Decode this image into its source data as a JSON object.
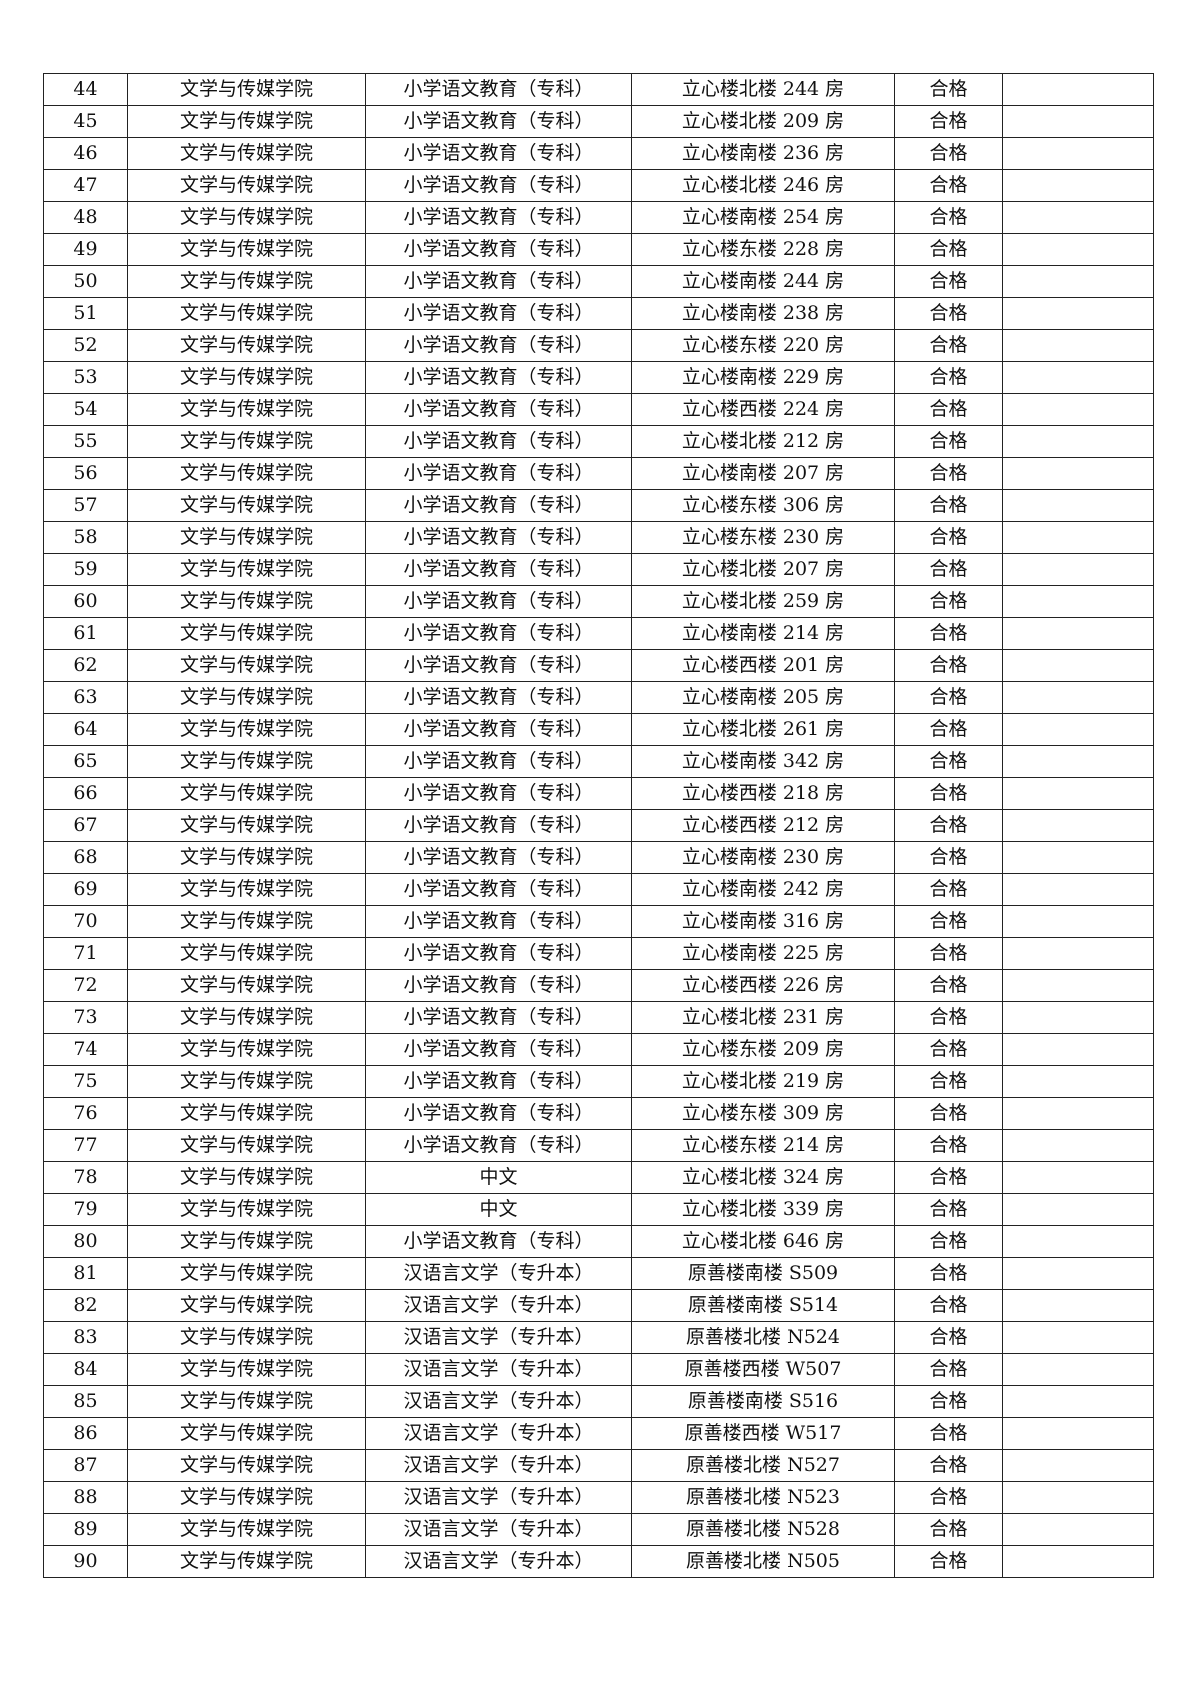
{
  "table": {
    "rows": [
      [
        "44",
        "文学与传媒学院",
        "小学语文教育（专科）",
        "立心楼北楼 244 房",
        "合格",
        ""
      ],
      [
        "45",
        "文学与传媒学院",
        "小学语文教育（专科）",
        "立心楼北楼 209 房",
        "合格",
        ""
      ],
      [
        "46",
        "文学与传媒学院",
        "小学语文教育（专科）",
        "立心楼南楼 236 房",
        "合格",
        ""
      ],
      [
        "47",
        "文学与传媒学院",
        "小学语文教育（专科）",
        "立心楼北楼 246 房",
        "合格",
        ""
      ],
      [
        "48",
        "文学与传媒学院",
        "小学语文教育（专科）",
        "立心楼南楼 254 房",
        "合格",
        ""
      ],
      [
        "49",
        "文学与传媒学院",
        "小学语文教育（专科）",
        "立心楼东楼 228 房",
        "合格",
        ""
      ],
      [
        "50",
        "文学与传媒学院",
        "小学语文教育（专科）",
        "立心楼南楼 244 房",
        "合格",
        ""
      ],
      [
        "51",
        "文学与传媒学院",
        "小学语文教育（专科）",
        "立心楼南楼 238 房",
        "合格",
        ""
      ],
      [
        "52",
        "文学与传媒学院",
        "小学语文教育（专科）",
        "立心楼东楼 220 房",
        "合格",
        ""
      ],
      [
        "53",
        "文学与传媒学院",
        "小学语文教育（专科）",
        "立心楼南楼 229 房",
        "合格",
        ""
      ],
      [
        "54",
        "文学与传媒学院",
        "小学语文教育（专科）",
        "立心楼西楼 224 房",
        "合格",
        ""
      ],
      [
        "55",
        "文学与传媒学院",
        "小学语文教育（专科）",
        "立心楼北楼 212 房",
        "合格",
        ""
      ],
      [
        "56",
        "文学与传媒学院",
        "小学语文教育（专科）",
        "立心楼南楼 207 房",
        "合格",
        ""
      ],
      [
        "57",
        "文学与传媒学院",
        "小学语文教育（专科）",
        "立心楼东楼 306 房",
        "合格",
        ""
      ],
      [
        "58",
        "文学与传媒学院",
        "小学语文教育（专科）",
        "立心楼东楼 230 房",
        "合格",
        ""
      ],
      [
        "59",
        "文学与传媒学院",
        "小学语文教育（专科）",
        "立心楼北楼 207 房",
        "合格",
        ""
      ],
      [
        "60",
        "文学与传媒学院",
        "小学语文教育（专科）",
        "立心楼北楼 259 房",
        "合格",
        ""
      ],
      [
        "61",
        "文学与传媒学院",
        "小学语文教育（专科）",
        "立心楼南楼 214 房",
        "合格",
        ""
      ],
      [
        "62",
        "文学与传媒学院",
        "小学语文教育（专科）",
        "立心楼西楼 201 房",
        "合格",
        ""
      ],
      [
        "63",
        "文学与传媒学院",
        "小学语文教育（专科）",
        "立心楼南楼 205 房",
        "合格",
        ""
      ],
      [
        "64",
        "文学与传媒学院",
        "小学语文教育（专科）",
        "立心楼北楼 261 房",
        "合格",
        ""
      ],
      [
        "65",
        "文学与传媒学院",
        "小学语文教育（专科）",
        "立心楼南楼 342 房",
        "合格",
        ""
      ],
      [
        "66",
        "文学与传媒学院",
        "小学语文教育（专科）",
        "立心楼西楼 218 房",
        "合格",
        ""
      ],
      [
        "67",
        "文学与传媒学院",
        "小学语文教育（专科）",
        "立心楼西楼 212 房",
        "合格",
        ""
      ],
      [
        "68",
        "文学与传媒学院",
        "小学语文教育（专科）",
        "立心楼南楼 230 房",
        "合格",
        ""
      ],
      [
        "69",
        "文学与传媒学院",
        "小学语文教育（专科）",
        "立心楼南楼 242 房",
        "合格",
        ""
      ],
      [
        "70",
        "文学与传媒学院",
        "小学语文教育（专科）",
        "立心楼南楼 316 房",
        "合格",
        ""
      ],
      [
        "71",
        "文学与传媒学院",
        "小学语文教育（专科）",
        "立心楼南楼 225 房",
        "合格",
        ""
      ],
      [
        "72",
        "文学与传媒学院",
        "小学语文教育（专科）",
        "立心楼西楼 226 房",
        "合格",
        ""
      ],
      [
        "73",
        "文学与传媒学院",
        "小学语文教育（专科）",
        "立心楼北楼 231 房",
        "合格",
        ""
      ],
      [
        "74",
        "文学与传媒学院",
        "小学语文教育（专科）",
        "立心楼东楼 209 房",
        "合格",
        ""
      ],
      [
        "75",
        "文学与传媒学院",
        "小学语文教育（专科）",
        "立心楼北楼 219 房",
        "合格",
        ""
      ],
      [
        "76",
        "文学与传媒学院",
        "小学语文教育（专科）",
        "立心楼东楼 309 房",
        "合格",
        ""
      ],
      [
        "77",
        "文学与传媒学院",
        "小学语文教育（专科）",
        "立心楼东楼 214 房",
        "合格",
        ""
      ],
      [
        "78",
        "文学与传媒学院",
        "中文",
        "立心楼北楼 324 房",
        "合格",
        ""
      ],
      [
        "79",
        "文学与传媒学院",
        "中文",
        "立心楼北楼 339 房",
        "合格",
        ""
      ],
      [
        "80",
        "文学与传媒学院",
        "小学语文教育（专科）",
        "立心楼北楼 646 房",
        "合格",
        ""
      ],
      [
        "81",
        "文学与传媒学院",
        "汉语言文学（专升本）",
        "原善楼南楼 S509",
        "合格",
        ""
      ],
      [
        "82",
        "文学与传媒学院",
        "汉语言文学（专升本）",
        "原善楼南楼 S514",
        "合格",
        ""
      ],
      [
        "83",
        "文学与传媒学院",
        "汉语言文学（专升本）",
        "原善楼北楼 N524",
        "合格",
        ""
      ],
      [
        "84",
        "文学与传媒学院",
        "汉语言文学（专升本）",
        "原善楼西楼 W507",
        "合格",
        ""
      ],
      [
        "85",
        "文学与传媒学院",
        "汉语言文学（专升本）",
        "原善楼南楼 S516",
        "合格",
        ""
      ],
      [
        "86",
        "文学与传媒学院",
        "汉语言文学（专升本）",
        "原善楼西楼 W517",
        "合格",
        ""
      ],
      [
        "87",
        "文学与传媒学院",
        "汉语言文学（专升本）",
        "原善楼北楼 N527",
        "合格",
        ""
      ],
      [
        "88",
        "文学与传媒学院",
        "汉语言文学（专升本）",
        "原善楼北楼 N523",
        "合格",
        ""
      ],
      [
        "89",
        "文学与传媒学院",
        "汉语言文学（专升本）",
        "原善楼北楼 N528",
        "合格",
        ""
      ],
      [
        "90",
        "文学与传媒学院",
        "汉语言文学（专升本）",
        "原善楼北楼 N505",
        "合格",
        ""
      ]
    ]
  }
}
